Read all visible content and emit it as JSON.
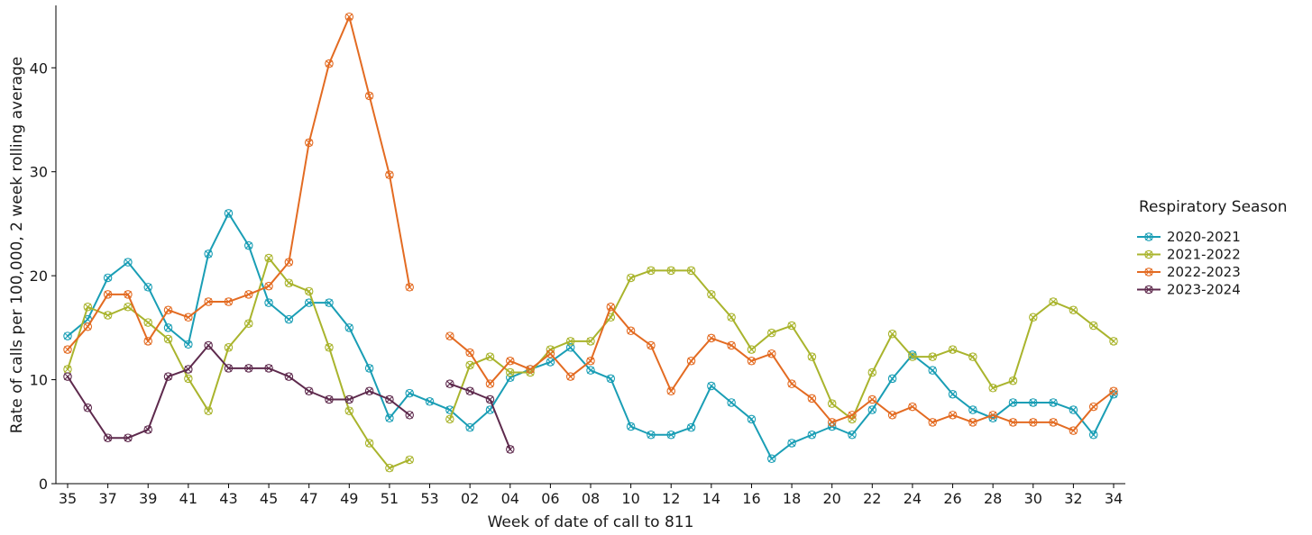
{
  "chart_data": {
    "type": "line",
    "title": "",
    "xlabel": "Week of date of call to 811",
    "ylabel": "Rate of calls per 100,000, 2 week rolling average",
    "ylim": [
      0,
      46
    ],
    "yticks": [
      0,
      10,
      20,
      30,
      40
    ],
    "grid": false,
    "legend_title": "Respiratory Season",
    "legend_position": "right",
    "x": [
      "35",
      "36",
      "37",
      "38",
      "39",
      "40",
      "41",
      "42",
      "43",
      "44",
      "45",
      "46",
      "47",
      "48",
      "49",
      "50",
      "51",
      "52",
      "53",
      "01",
      "02",
      "03",
      "04",
      "05",
      "06",
      "07",
      "08",
      "09",
      "10",
      "11",
      "12",
      "13",
      "14",
      "15",
      "16",
      "17",
      "18",
      "19",
      "20",
      "21",
      "22",
      "23",
      "24",
      "25",
      "26",
      "27",
      "28",
      "29",
      "30",
      "31",
      "32",
      "33",
      "34"
    ],
    "xticks": [
      "35",
      "37",
      "39",
      "41",
      "43",
      "45",
      "47",
      "49",
      "51",
      "53",
      "02",
      "04",
      "06",
      "08",
      "10",
      "12",
      "14",
      "16",
      "18",
      "20",
      "22",
      "24",
      "26",
      "28",
      "30",
      "32",
      "34"
    ],
    "series": [
      {
        "name": "2020-2021",
        "color": "#1a9eb5",
        "values": [
          14.2,
          15.8,
          19.8,
          21.3,
          18.9,
          15.0,
          13.4,
          22.1,
          26.0,
          22.9,
          17.4,
          15.8,
          17.4,
          17.4,
          15.0,
          11.1,
          6.3,
          8.7,
          7.9,
          7.1,
          5.4,
          7.1,
          10.2,
          11.0,
          11.7,
          13.1,
          10.9,
          10.1,
          5.5,
          4.7,
          4.7,
          5.4,
          9.4,
          7.8,
          6.2,
          2.4,
          3.9,
          4.7,
          5.5,
          4.7,
          7.1,
          10.1,
          12.4,
          10.9,
          8.6,
          7.1,
          6.3,
          7.8,
          7.8,
          7.8,
          7.1,
          4.7,
          8.6
        ]
      },
      {
        "name": "2021-2022",
        "color": "#a9b42d",
        "values": [
          11.0,
          17.0,
          16.2,
          17.0,
          15.5,
          13.9,
          10.1,
          7.0,
          13.1,
          15.4,
          21.7,
          19.3,
          18.5,
          13.1,
          7.0,
          3.9,
          1.5,
          2.3,
          null,
          6.2,
          11.4,
          12.2,
          10.7,
          10.7,
          12.9,
          13.7,
          13.7,
          16.0,
          19.8,
          20.5,
          20.5,
          20.5,
          18.2,
          16.0,
          12.9,
          14.5,
          15.2,
          12.2,
          7.7,
          6.2,
          10.7,
          14.4,
          12.2,
          12.2,
          12.9,
          12.2,
          9.2,
          9.9,
          16.0,
          17.5,
          16.7,
          15.2,
          13.7
        ]
      },
      {
        "name": "2022-2023",
        "color": "#e36b22",
        "values": [
          12.9,
          15.1,
          18.2,
          18.2,
          13.7,
          16.7,
          16.0,
          17.5,
          17.5,
          18.2,
          19.0,
          21.3,
          32.8,
          40.4,
          44.9,
          37.3,
          29.7,
          18.9,
          null,
          14.2,
          12.6,
          9.6,
          11.8,
          11.0,
          12.5,
          10.3,
          11.8,
          17.0,
          14.7,
          13.3,
          8.9,
          11.8,
          14.0,
          13.3,
          11.8,
          12.5,
          9.6,
          8.2,
          5.9,
          6.6,
          8.1,
          6.6,
          7.4,
          5.9,
          6.6,
          5.9,
          6.6,
          5.9,
          5.9,
          5.9,
          5.1,
          7.4,
          8.9
        ]
      },
      {
        "name": "2023-2024",
        "color": "#5e2a4d",
        "values": [
          10.3,
          7.3,
          4.4,
          4.4,
          5.2,
          10.3,
          11.0,
          13.3,
          11.1,
          11.1,
          11.1,
          10.3,
          8.9,
          8.1,
          8.1,
          8.9,
          8.1,
          6.6,
          null,
          9.6,
          8.9,
          8.1,
          3.3,
          null,
          null,
          null,
          null,
          null,
          null,
          null,
          null,
          null,
          null,
          null,
          null,
          null,
          null,
          null,
          null,
          null,
          null,
          null,
          null,
          null,
          null,
          null,
          null,
          null,
          null,
          null,
          null,
          null,
          null
        ]
      }
    ]
  }
}
